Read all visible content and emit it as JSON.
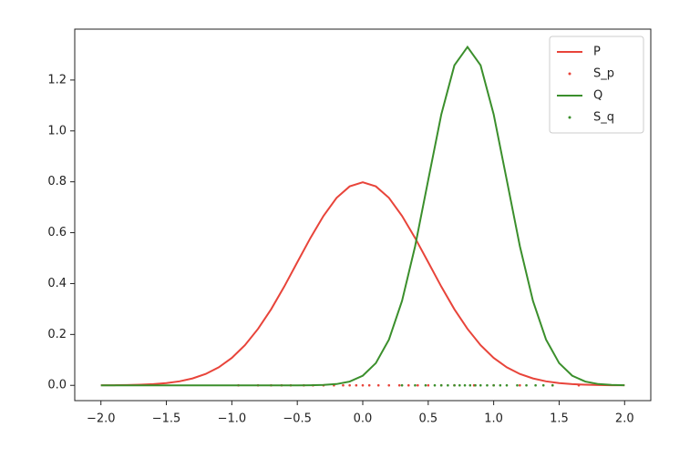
{
  "chart_data": {
    "type": "line",
    "x": [
      -2.0,
      -1.9,
      -1.8,
      -1.7,
      -1.6,
      -1.5,
      -1.4,
      -1.3,
      -1.2,
      -1.1,
      -1.0,
      -0.9,
      -0.8,
      -0.7,
      -0.6,
      -0.5,
      -0.4,
      -0.3,
      -0.2,
      -0.1,
      0.0,
      0.1,
      0.2,
      0.3,
      0.4,
      0.5,
      0.6,
      0.7,
      0.8,
      0.9,
      1.0,
      1.1,
      1.2,
      1.3,
      1.4,
      1.5,
      1.6,
      1.7,
      1.8,
      1.9,
      2.0
    ],
    "series": [
      {
        "name": "P",
        "kind": "line",
        "color": "#e8443a",
        "values": [
          0.0003,
          0.0006,
          0.0012,
          0.0025,
          0.0048,
          0.0089,
          0.0158,
          0.0272,
          0.0448,
          0.0709,
          0.108,
          0.158,
          0.222,
          0.299,
          0.388,
          0.484,
          0.579,
          0.666,
          0.737,
          0.782,
          0.798,
          0.782,
          0.737,
          0.666,
          0.579,
          0.484,
          0.388,
          0.299,
          0.222,
          0.158,
          0.108,
          0.0709,
          0.0448,
          0.0272,
          0.0158,
          0.0089,
          0.0048,
          0.0025,
          0.0012,
          0.0006,
          0.0003
        ]
      },
      {
        "name": "S_p",
        "kind": "scatter",
        "color": "#e8443a",
        "x": [
          -0.95,
          -0.8,
          -0.7,
          -0.62,
          -0.55,
          -0.45,
          -0.38,
          -0.3,
          -0.22,
          -0.15,
          -0.1,
          -0.05,
          0.0,
          0.05,
          0.12,
          0.2,
          0.28,
          0.35,
          0.42,
          0.5,
          0.6,
          0.7,
          0.85,
          1.0,
          1.2,
          1.45,
          1.65
        ],
        "values": [
          0,
          0,
          0,
          0,
          0,
          0,
          0,
          0,
          0,
          0,
          0,
          0,
          0,
          0,
          0,
          0,
          0,
          0,
          0,
          0,
          0,
          0,
          0,
          0,
          0,
          0,
          0
        ]
      },
      {
        "name": "Q",
        "kind": "line",
        "color": "#3b8f2c",
        "values": [
          0,
          0,
          0,
          0,
          0,
          0,
          0,
          0,
          0,
          0,
          0,
          0,
          0,
          0,
          0,
          0.0001,
          0.0004,
          0.0016,
          0.0051,
          0.0148,
          0.038,
          0.0874,
          0.18,
          0.332,
          0.547,
          0.807,
          1.065,
          1.258,
          1.33,
          1.258,
          1.065,
          0.807,
          0.547,
          0.332,
          0.18,
          0.0874,
          0.038,
          0.0148,
          0.0051,
          0.0016,
          0.0004
        ]
      },
      {
        "name": "S_q",
        "kind": "scatter",
        "color": "#3b8f2c",
        "x": [
          0.3,
          0.4,
          0.48,
          0.55,
          0.6,
          0.65,
          0.7,
          0.74,
          0.78,
          0.82,
          0.86,
          0.9,
          0.95,
          1.0,
          1.05,
          1.1,
          1.18,
          1.25,
          1.32,
          1.38,
          1.45
        ],
        "values": [
          0,
          0,
          0,
          0,
          0,
          0,
          0,
          0,
          0,
          0,
          0,
          0,
          0,
          0,
          0,
          0,
          0,
          0,
          0,
          0,
          0
        ]
      }
    ],
    "xlim": [
      -2.2,
      2.2
    ],
    "ylim": [
      -0.06,
      1.4
    ],
    "xticks": [
      {
        "value": -2.0,
        "label": "−2.0"
      },
      {
        "value": -1.5,
        "label": "−1.5"
      },
      {
        "value": -1.0,
        "label": "−1.0"
      },
      {
        "value": -0.5,
        "label": "−0.5"
      },
      {
        "value": 0.0,
        "label": "0.0"
      },
      {
        "value": 0.5,
        "label": "0.5"
      },
      {
        "value": 1.0,
        "label": "1.0"
      },
      {
        "value": 1.5,
        "label": "1.5"
      },
      {
        "value": 2.0,
        "label": "2.0"
      }
    ],
    "yticks": [
      {
        "value": 0.0,
        "label": "0.0"
      },
      {
        "value": 0.2,
        "label": "0.2"
      },
      {
        "value": 0.4,
        "label": "0.4"
      },
      {
        "value": 0.6,
        "label": "0.6"
      },
      {
        "value": 0.8,
        "label": "0.8"
      },
      {
        "value": 1.0,
        "label": "1.0"
      },
      {
        "value": 1.2,
        "label": "1.2"
      }
    ],
    "legend": "upper right"
  }
}
